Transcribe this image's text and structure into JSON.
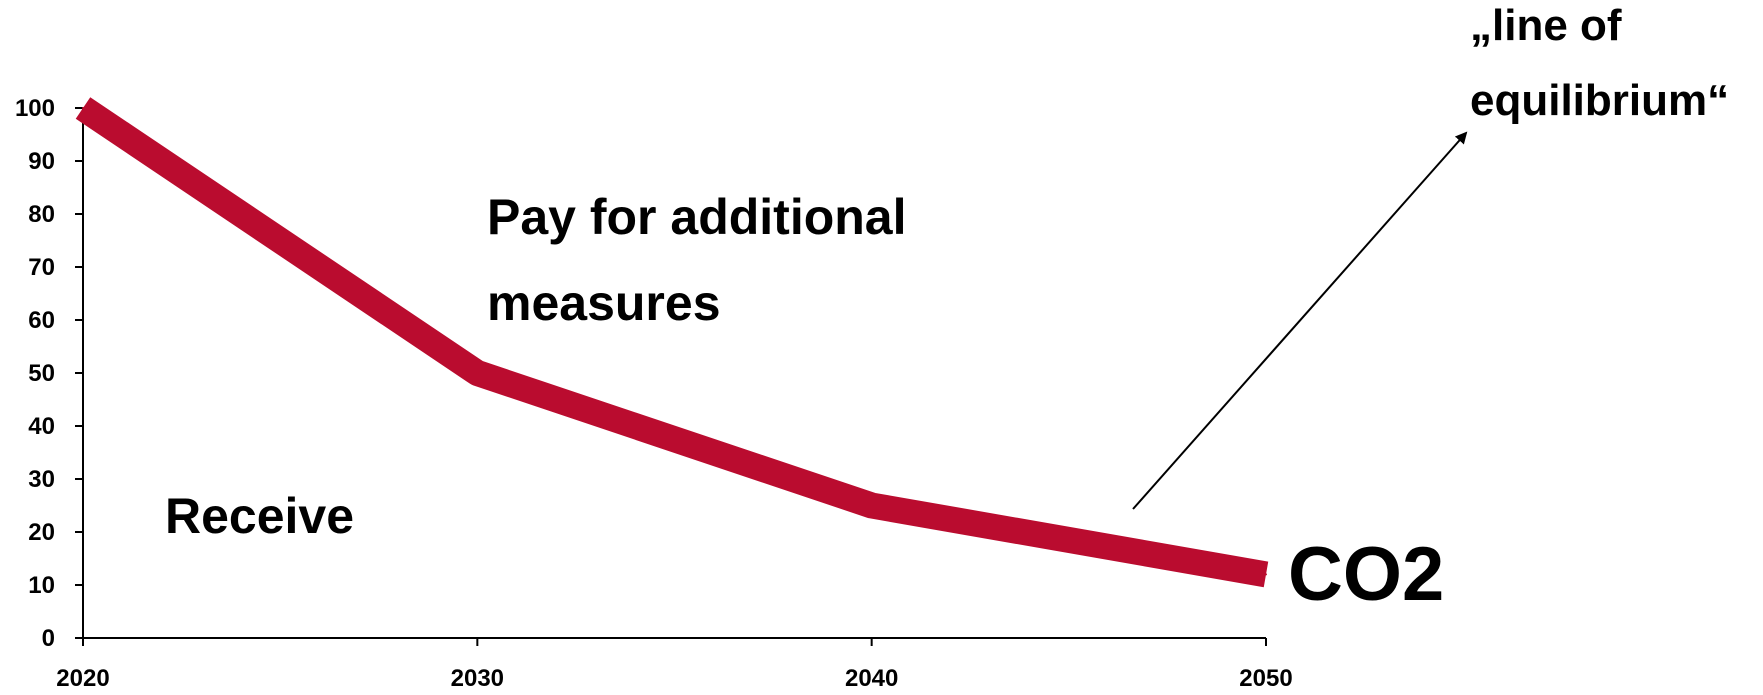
{
  "chart_data": {
    "type": "line",
    "title": "",
    "xlabel": "",
    "ylabel": "",
    "x": [
      2020,
      2030,
      2040,
      2050
    ],
    "xlim": [
      2020,
      2050
    ],
    "ylim": [
      0,
      100
    ],
    "y_ticks": [
      0,
      10,
      20,
      30,
      40,
      50,
      60,
      70,
      80,
      90,
      100
    ],
    "x_ticks": [
      "2020",
      "2030",
      "2040",
      "2050"
    ],
    "grid": false,
    "legend": "none",
    "series": [
      {
        "name": "CO2",
        "values": [
          100,
          50,
          25,
          12
        ],
        "color": "#BA0C2F"
      }
    ],
    "annotations": {
      "upper_region": [
        "Pay for additional",
        "measures"
      ],
      "lower_region": "Receive",
      "arrow_label": [
        "„line of",
        "equilibrium“"
      ]
    }
  }
}
